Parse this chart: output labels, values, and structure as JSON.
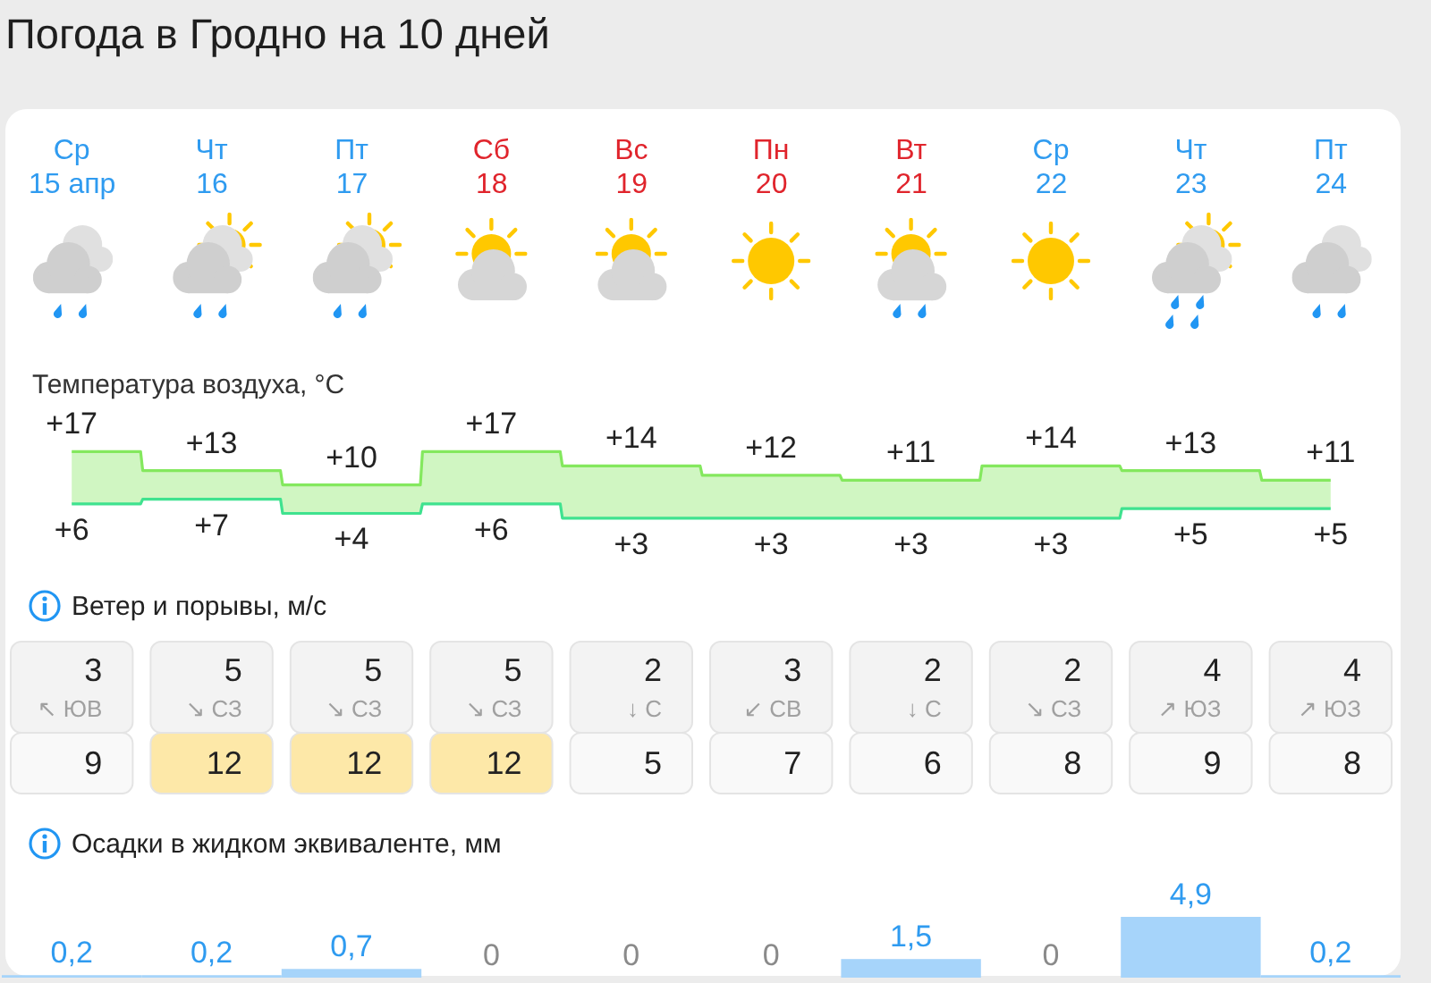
{
  "chart_data": [
    {
      "type": "step",
      "title": "Погода в Гродно на 10 дней",
      "subtitle": "Температура воздуха, °C",
      "categories": [
        "Ср 15 апр",
        "Чт 16",
        "Пт 17",
        "Сб 18",
        "Вс 19",
        "Пн 20",
        "Вт 21",
        "Ср 22",
        "Чт 23",
        "Пт 24"
      ],
      "series": [
        {
          "color": "#84e85e",
          "values": [
            17,
            13,
            10,
            17,
            14,
            12,
            11,
            14,
            13,
            11
          ],
          "lower": [
            6,
            7,
            4,
            6,
            3,
            3,
            3,
            3,
            5,
            5
          ],
          "upper": [
            17,
            13,
            10,
            17,
            14,
            12,
            11,
            14,
            13,
            11
          ],
          "value_labels": [
            "+17",
            "+13",
            "+10",
            "+17",
            "+14",
            "+12",
            "+11",
            "+14",
            "+13",
            "+11"
          ]
        },
        {
          "color": "#3fe28f",
          "values": [
            6,
            7,
            4,
            6,
            3,
            3,
            3,
            3,
            5,
            5
          ],
          "value_labels": [
            "+6",
            "+7",
            "+4",
            "+6",
            "+3",
            "+3",
            "+3",
            "+3",
            "+5",
            "+5"
          ]
        }
      ],
      "tick_labels": "x"
    },
    {
      "type": "other",
      "title": "Ветер и порывы, м/с",
      "categories": [
        null,
        null,
        null,
        null,
        null,
        null,
        null,
        null,
        null,
        null
      ],
      "annotations": [
        "3",
        "5",
        "5",
        "5",
        "2",
        "3",
        "2",
        "2",
        "4",
        "4",
        "↖ ЮВ",
        "↘ СЗ",
        "↘ СЗ",
        "↘ СЗ",
        "↓ С",
        "↙ СВ",
        "↓ С",
        "↘ СЗ",
        "↗ ЮЗ",
        "↗ ЮЗ",
        "9",
        "12",
        "12",
        "12",
        "5",
        "7",
        "6",
        "8",
        "9",
        "8"
      ]
    },
    {
      "type": "bar",
      "title": "Осадки в жидком эквиваленте, мм",
      "categories": [
        null,
        null,
        null,
        null,
        null,
        null,
        null,
        null,
        null,
        null
      ],
      "values": [
        0.2,
        0.2,
        0.7,
        0,
        0,
        0,
        1.5,
        0,
        4.9,
        0.2
      ],
      "value_labels": [
        "0,2",
        "0,2",
        "0,7",
        "0",
        "0",
        "0",
        "1,5",
        "0",
        "4,9",
        "0,2"
      ],
      "color": "#a6d4fa"
    }
  ]
}
